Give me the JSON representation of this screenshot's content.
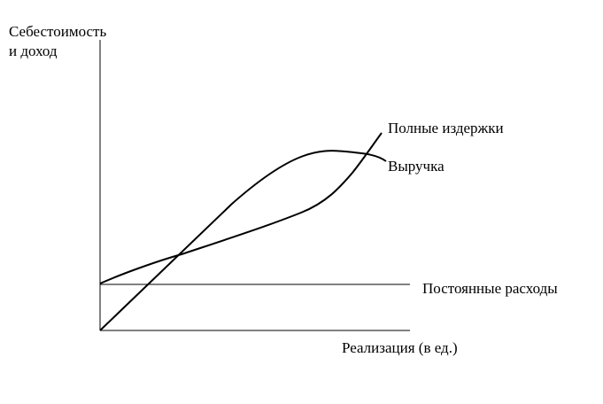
{
  "diagram": {
    "ylabel_line1": "Себестоимость",
    "ylabel_line2": "и доход",
    "xlabel": "Реализация (в ед.)",
    "curves": {
      "total_costs": "Полные издержки",
      "revenue": "Выручка",
      "fixed_costs": "Постоянные расходы"
    },
    "colors": {
      "line": "#000000",
      "background": "#ffffff"
    }
  }
}
